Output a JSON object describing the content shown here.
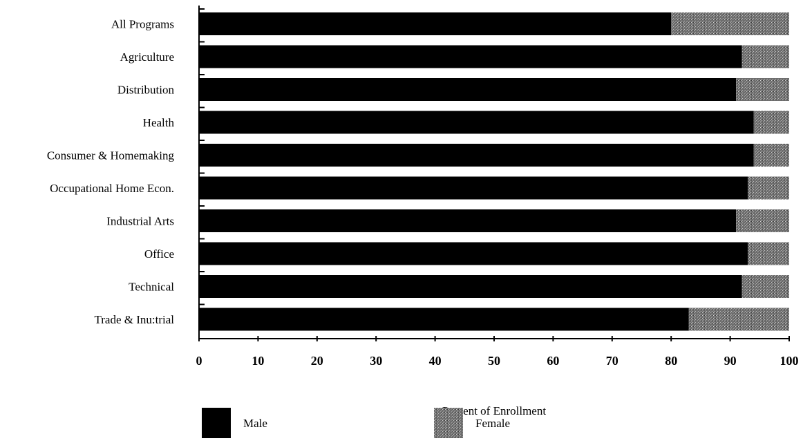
{
  "chart_data": {
    "type": "bar",
    "orientation": "horizontal",
    "stacked": true,
    "categories": [
      "All Programs",
      "Agriculture",
      "Distribution",
      "Health",
      "Consumer & Homemaking",
      "Occupational Home Econ.",
      "Industrial Arts",
      "Office",
      "Technical",
      "Trade & Inu:trial"
    ],
    "series": [
      {
        "name": "Male",
        "color": "#000000",
        "values": [
          80,
          92,
          91,
          94,
          94,
          93,
          91,
          93,
          92,
          83
        ]
      },
      {
        "name": "Female",
        "color": "#8a8a8a",
        "values": [
          20,
          8,
          9,
          6,
          6,
          7,
          9,
          7,
          8,
          17
        ]
      }
    ],
    "xlabel": "Percent of Enrollment",
    "xlim": [
      0,
      100
    ],
    "xticks": [
      "0",
      "10",
      "20",
      "30",
      "40",
      "50",
      "60",
      "70",
      "80",
      "90",
      "100"
    ],
    "grid": false,
    "legend_position": "bottom"
  }
}
